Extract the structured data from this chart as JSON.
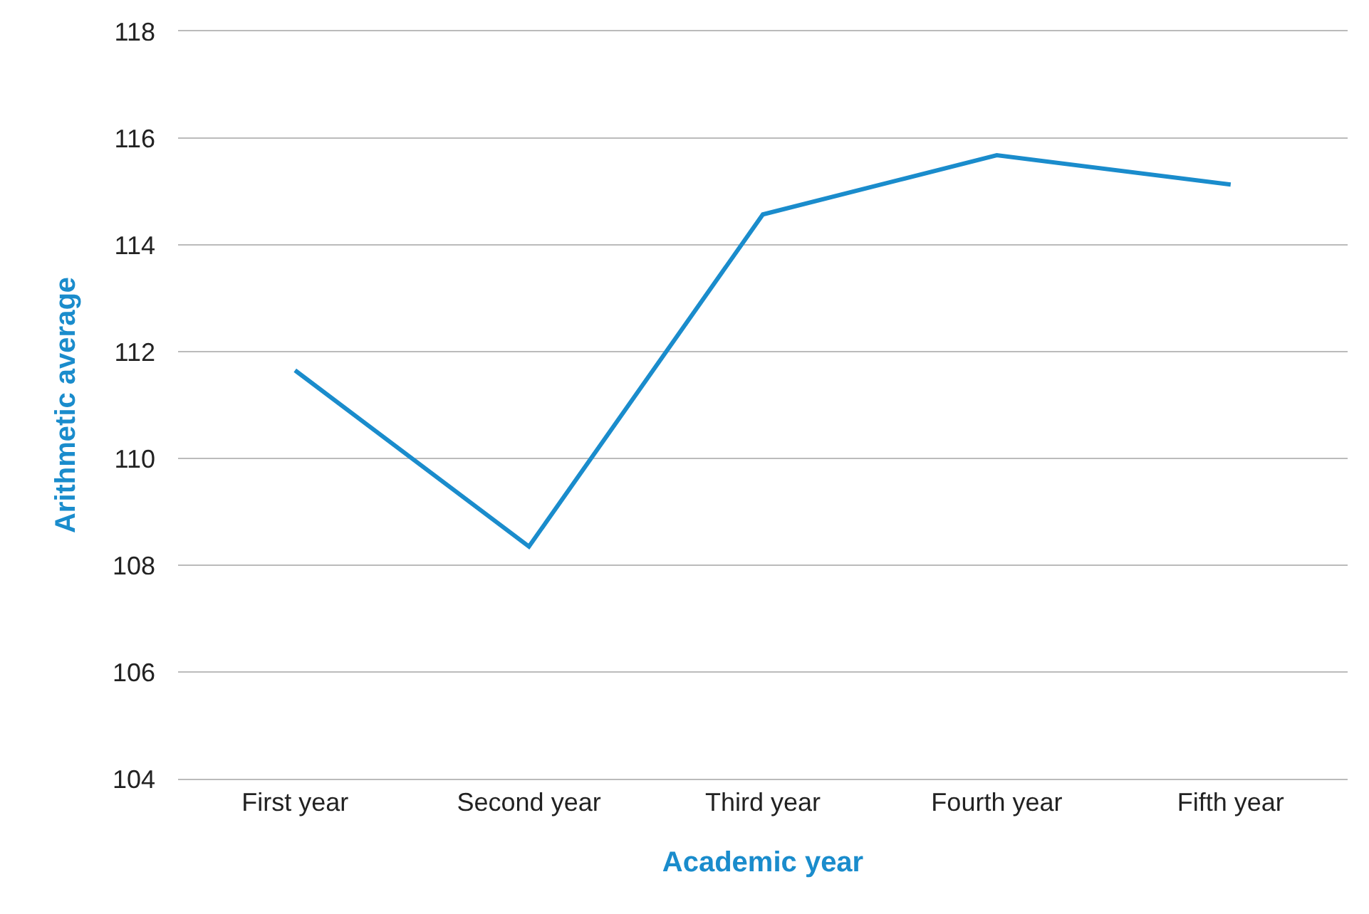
{
  "chart_data": {
    "type": "line",
    "xlabel": "Academic year",
    "ylabel": "Arithmetic average",
    "categories": [
      "First year",
      "Second year",
      "Third year",
      "Fourth year",
      "Fifth year"
    ],
    "series": [
      {
        "color": "#1a8ccc",
        "values": [
          111.65,
          108.35,
          114.57,
          115.68,
          115.13
        ]
      }
    ],
    "ylim": [
      104,
      118
    ],
    "yticks": [
      104,
      106,
      108,
      110,
      112,
      114,
      116,
      118
    ],
    "grid": "y",
    "marker": "none",
    "line_style": "solid"
  }
}
